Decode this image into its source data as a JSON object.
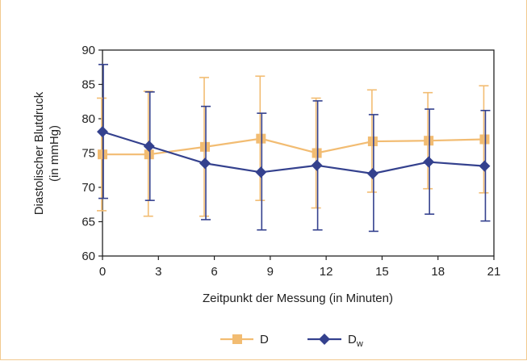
{
  "chart_data": {
    "type": "line",
    "ylabel_line1": "Diastolischer Blutdruck",
    "ylabel_line2": "(in mmHg)",
    "xlabel": "Zeitpunkt der Messung (in Minuten)",
    "x": [
      0,
      2.5,
      5.5,
      8.5,
      11.5,
      14.5,
      17.5,
      20.5
    ],
    "xticks": [
      0,
      3,
      6,
      9,
      12,
      15,
      18,
      21
    ],
    "yticks": [
      60,
      65,
      70,
      75,
      80,
      85,
      90
    ],
    "xlim": [
      0,
      21
    ],
    "ylim": [
      60,
      90
    ],
    "grid": false,
    "legend_position": "bottom-center",
    "series": [
      {
        "name": "D",
        "color": "#f2bc72",
        "marker": "square",
        "values": [
          74.8,
          74.8,
          75.9,
          77.1,
          75.0,
          76.7,
          76.8,
          77.0
        ],
        "err_low": [
          66.6,
          65.8,
          65.8,
          68.1,
          67.0,
          69.3,
          69.8,
          69.2
        ],
        "err_high": [
          83.0,
          84.0,
          86.0,
          86.2,
          83.0,
          84.2,
          83.8,
          84.8
        ]
      },
      {
        "name": "D",
        "subscript": "w",
        "color": "#34418e",
        "marker": "diamond",
        "values": [
          78.1,
          76.0,
          73.5,
          72.2,
          73.2,
          72.0,
          73.7,
          73.1
        ],
        "err_low": [
          68.4,
          68.1,
          65.3,
          63.8,
          63.8,
          63.6,
          66.1,
          65.1
        ],
        "err_high": [
          87.9,
          83.9,
          81.8,
          80.8,
          82.6,
          80.6,
          81.4,
          81.2
        ]
      }
    ]
  }
}
